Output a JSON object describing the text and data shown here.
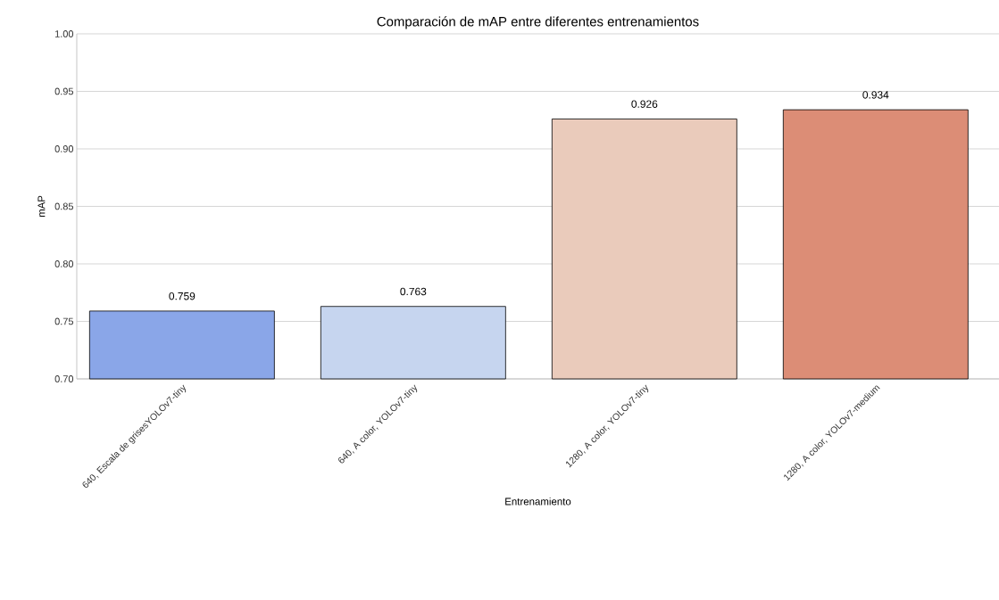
{
  "chart_data": {
    "type": "bar",
    "title": "Comparación de mAP entre diferentes entrenamientos",
    "xlabel": "Entrenamiento",
    "ylabel": "mAP",
    "categories": [
      "640, Escala de grisesYOLOv7-tiny",
      "640, A color, YOLOv7-tiny",
      "1280, A color, YOLOv7-tiny",
      "1280, A color, YOLOv7-medium"
    ],
    "values": [
      0.759,
      0.763,
      0.926,
      0.934
    ],
    "colors": [
      "#8aa6e8",
      "#c6d5ef",
      "#eacbbb",
      "#dc8d76"
    ],
    "ylim": [
      0.7,
      1.0
    ],
    "yticks": [
      {
        "value": 0.7,
        "label": "0.70"
      },
      {
        "value": 0.75,
        "label": "0.75"
      },
      {
        "value": 0.8,
        "label": "0.80"
      },
      {
        "value": 0.85,
        "label": "0.85"
      },
      {
        "value": 0.9,
        "label": "0.90"
      },
      {
        "value": 0.95,
        "label": "0.95"
      },
      {
        "value": 1.0,
        "label": "1.00"
      }
    ],
    "grid": "y",
    "data_labels": true
  }
}
